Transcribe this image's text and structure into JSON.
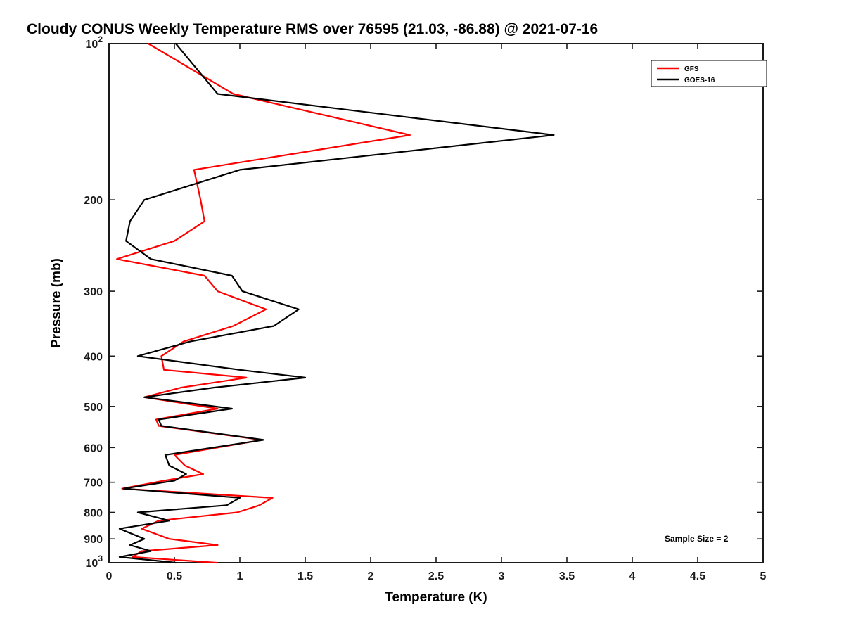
{
  "chart_data": {
    "type": "line",
    "title": "Cloudy CONUS Weekly Temperature RMS over 76595 (21.03, -86.88) @ 2021-07-16",
    "xlabel": "Temperature (K)",
    "ylabel": "Pressure (mb)",
    "annotation": "Sample Size = 2",
    "xlim": [
      0,
      5
    ],
    "ylim_pressure_mb": [
      100,
      1000
    ],
    "y_scale": "log10",
    "y_axis_inverted": true,
    "grid": false,
    "legend_position": "top-right",
    "x_ticks": [
      {
        "value": 0,
        "label": "0"
      },
      {
        "value": 0.5,
        "label": "0.5"
      },
      {
        "value": 1,
        "label": "1"
      },
      {
        "value": 1.5,
        "label": "1.5"
      },
      {
        "value": 2,
        "label": "2"
      },
      {
        "value": 2.5,
        "label": "2.5"
      },
      {
        "value": 3,
        "label": "3"
      },
      {
        "value": 3.5,
        "label": "3.5"
      },
      {
        "value": 4,
        "label": "4"
      },
      {
        "value": 4.5,
        "label": "4.5"
      },
      {
        "value": 5,
        "label": "5"
      }
    ],
    "y_ticks": [
      {
        "value": 100,
        "base": "10",
        "sup": "2"
      },
      {
        "value": 200,
        "label": "200"
      },
      {
        "value": 300,
        "label": "300"
      },
      {
        "value": 400,
        "label": "400"
      },
      {
        "value": 500,
        "label": "500"
      },
      {
        "value": 600,
        "label": "600"
      },
      {
        "value": 700,
        "label": "700"
      },
      {
        "value": 800,
        "label": "800"
      },
      {
        "value": 900,
        "label": "900"
      },
      {
        "value": 1000,
        "base": "10",
        "sup": "3"
      }
    ],
    "pressure_levels_mb": [
      100,
      125,
      150,
      175,
      200,
      220,
      240,
      260,
      280,
      300,
      325,
      350,
      375,
      400,
      425,
      440,
      460,
      480,
      505,
      530,
      545,
      580,
      620,
      650,
      675,
      695,
      720,
      750,
      775,
      800,
      830,
      860,
      900,
      925,
      950,
      975,
      1000
    ],
    "series": [
      {
        "name": "GFS",
        "color": "#ff0000",
        "values": [
          0.3,
          0.95,
          2.3,
          0.65,
          0.7,
          0.73,
          0.5,
          0.06,
          0.73,
          0.83,
          1.2,
          0.95,
          0.57,
          0.4,
          0.42,
          1.05,
          0.55,
          0.27,
          0.83,
          0.36,
          0.38,
          1.17,
          0.5,
          0.58,
          0.72,
          0.42,
          0.1,
          1.25,
          1.15,
          0.98,
          0.38,
          0.25,
          0.46,
          0.83,
          0.25,
          0.18,
          0.82
        ]
      },
      {
        "name": "GOES-16",
        "color": "#000000",
        "values": [
          0.51,
          0.83,
          3.4,
          1.0,
          0.27,
          0.16,
          0.13,
          0.32,
          0.94,
          1.02,
          1.45,
          1.26,
          0.62,
          0.22,
          1.0,
          1.5,
          0.8,
          0.27,
          0.94,
          0.38,
          0.4,
          1.18,
          0.43,
          0.46,
          0.59,
          0.5,
          0.11,
          1.0,
          0.9,
          0.22,
          0.46,
          0.08,
          0.27,
          0.16,
          0.32,
          0.08,
          0.51
        ]
      }
    ]
  }
}
